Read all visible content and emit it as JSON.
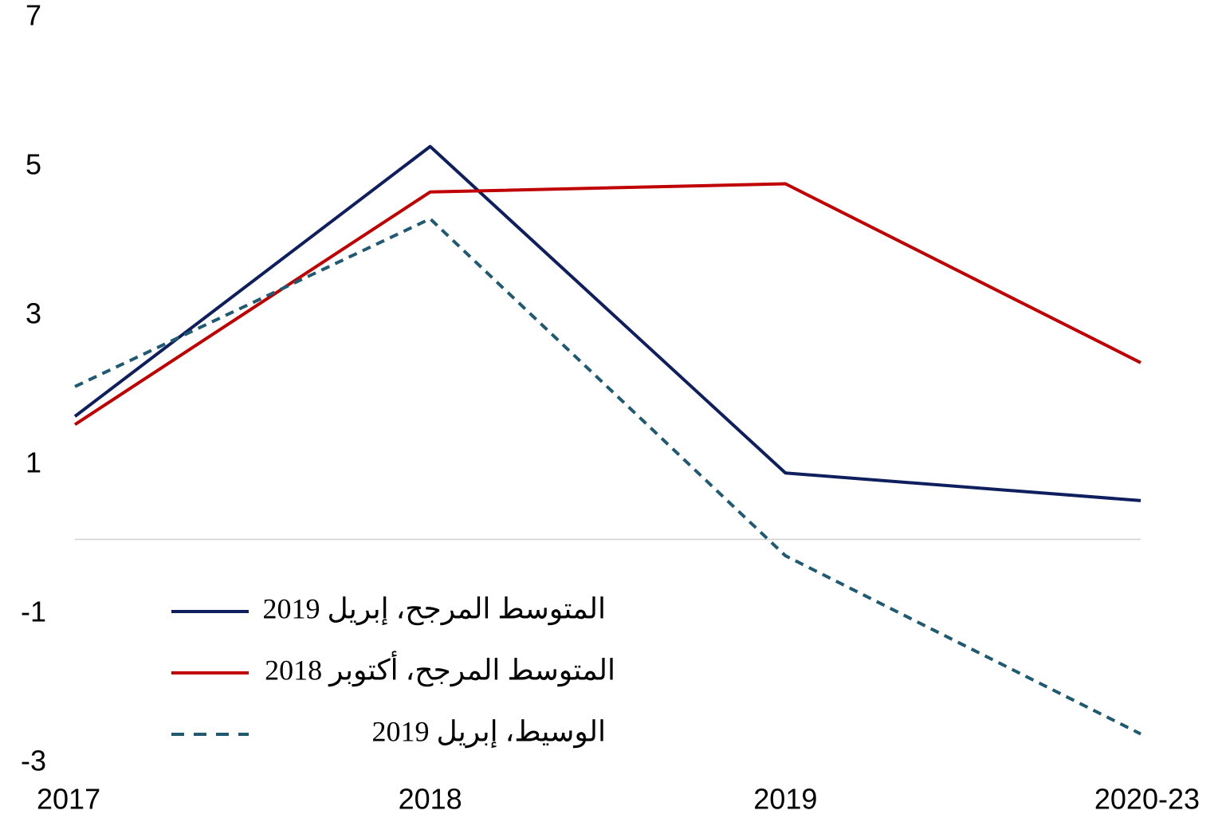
{
  "chart_data": {
    "type": "line",
    "categories": [
      "2017",
      "2018",
      "2019",
      "2020-23"
    ],
    "series": [
      {
        "name": "المتوسط المرجح، إبريل 2019",
        "color": "#0f1f5e",
        "dash": false,
        "values": [
          1.65,
          5.27,
          0.89,
          0.52
        ]
      },
      {
        "name": "المتوسط المرجح، أكتوبر 2018",
        "color": "#c00000",
        "dash": false,
        "values": [
          1.54,
          4.66,
          4.77,
          2.37
        ]
      },
      {
        "name": "الوسيط، إبريل 2019",
        "color": "#1f5a72",
        "dash": true,
        "values": [
          2.05,
          4.3,
          -0.22,
          -2.61
        ]
      }
    ],
    "ylim": [
      -3,
      7
    ],
    "yticks": [
      7,
      5,
      3,
      1,
      -1,
      -3
    ]
  }
}
